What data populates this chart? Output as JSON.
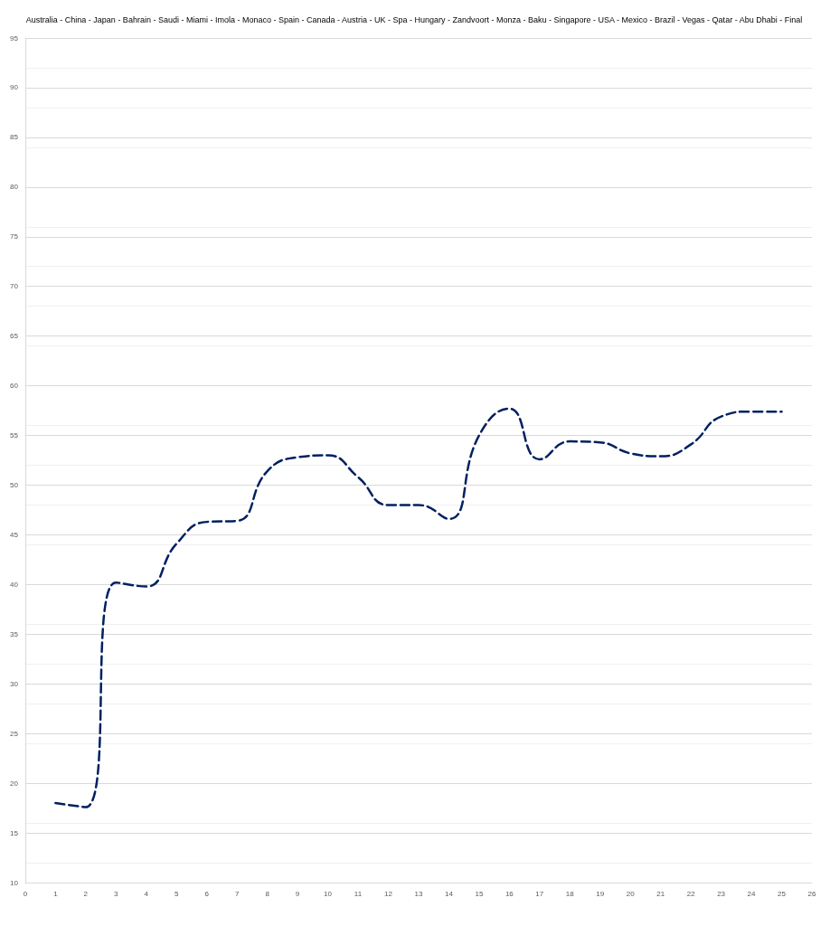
{
  "chart_data": {
    "type": "line",
    "title": "Australia - China - Japan - Bahrain - Saudi - Miami - Imola - Monaco - Spain - Canada - Austria - UK - Spa - Hungary - Zandvoort - Monza - Baku - Singapore - USA - Mexico - Brazil - Vegas - Qatar - Abu Dhabi - Final",
    "x": [
      1,
      2,
      3,
      4,
      5,
      6,
      7,
      8,
      9,
      10,
      11,
      12,
      13,
      14,
      15,
      16,
      17,
      18,
      19,
      20,
      21,
      22,
      23,
      24,
      25
    ],
    "series": [
      {
        "color": "#002060",
        "values": [
          18,
          17.6,
          40.2,
          39.8,
          44.1,
          46.3,
          46.4,
          51.4,
          52.8,
          53,
          50.8,
          48,
          48,
          46.6,
          55,
          57.7,
          52.6,
          54.4,
          54.3,
          53.2,
          52.9,
          54.1,
          56.9,
          57.4,
          57.4
        ]
      }
    ],
    "xlim": [
      0,
      26
    ],
    "xticks": [
      0,
      1,
      2,
      3,
      4,
      5,
      6,
      7,
      8,
      9,
      10,
      11,
      12,
      13,
      14,
      15,
      16,
      17,
      18,
      19,
      20,
      21,
      22,
      23,
      24,
      25,
      26
    ],
    "ylim": [
      10,
      95
    ],
    "yticks": [
      10,
      15,
      20,
      25,
      30,
      35,
      40,
      45,
      50,
      55,
      60,
      65,
      70,
      75,
      80,
      85,
      90,
      95
    ],
    "grid": "y",
    "marker": "none",
    "line_style": "dashed"
  }
}
